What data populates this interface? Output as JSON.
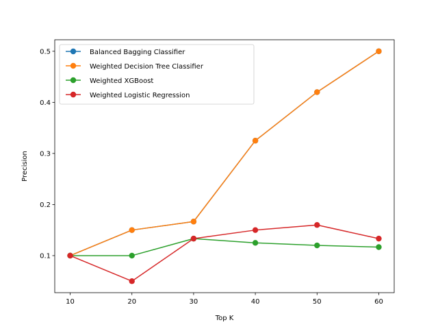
{
  "chart_data": {
    "type": "line",
    "title": "",
    "xlabel": "Top K",
    "ylabel": "Precision",
    "x": [
      10,
      20,
      30,
      40,
      50,
      60
    ],
    "xlim": [
      7.5,
      62.5
    ],
    "ylim": [
      0.0275,
      0.5225
    ],
    "xticks": [
      10,
      20,
      30,
      40,
      50,
      60
    ],
    "yticks": [
      0.1,
      0.2,
      0.3,
      0.4,
      0.5
    ],
    "ytick_labels": [
      "0.1",
      "0.2",
      "0.3",
      "0.4",
      "0.5"
    ],
    "grid": false,
    "legend_position": "upper-left",
    "series": [
      {
        "name": "Balanced Bagging Classifier",
        "color": "#1f77b4",
        "marker": "circle",
        "values": [
          0.1,
          0.15,
          0.1667,
          0.325,
          0.42,
          0.5
        ]
      },
      {
        "name": "Weighted Decision Tree Classifier",
        "color": "#ff7f0e",
        "marker": "circle",
        "values": [
          0.1,
          0.15,
          0.1667,
          0.325,
          0.42,
          0.5
        ]
      },
      {
        "name": "Weighted XGBoost",
        "color": "#2ca02c",
        "marker": "circle",
        "values": [
          0.1,
          0.1,
          0.1333,
          0.125,
          0.12,
          0.1167
        ]
      },
      {
        "name": "Weighted Logistic Regression",
        "color": "#d62728",
        "marker": "circle",
        "values": [
          0.1,
          0.05,
          0.1333,
          0.15,
          0.16,
          0.1333
        ]
      }
    ]
  }
}
